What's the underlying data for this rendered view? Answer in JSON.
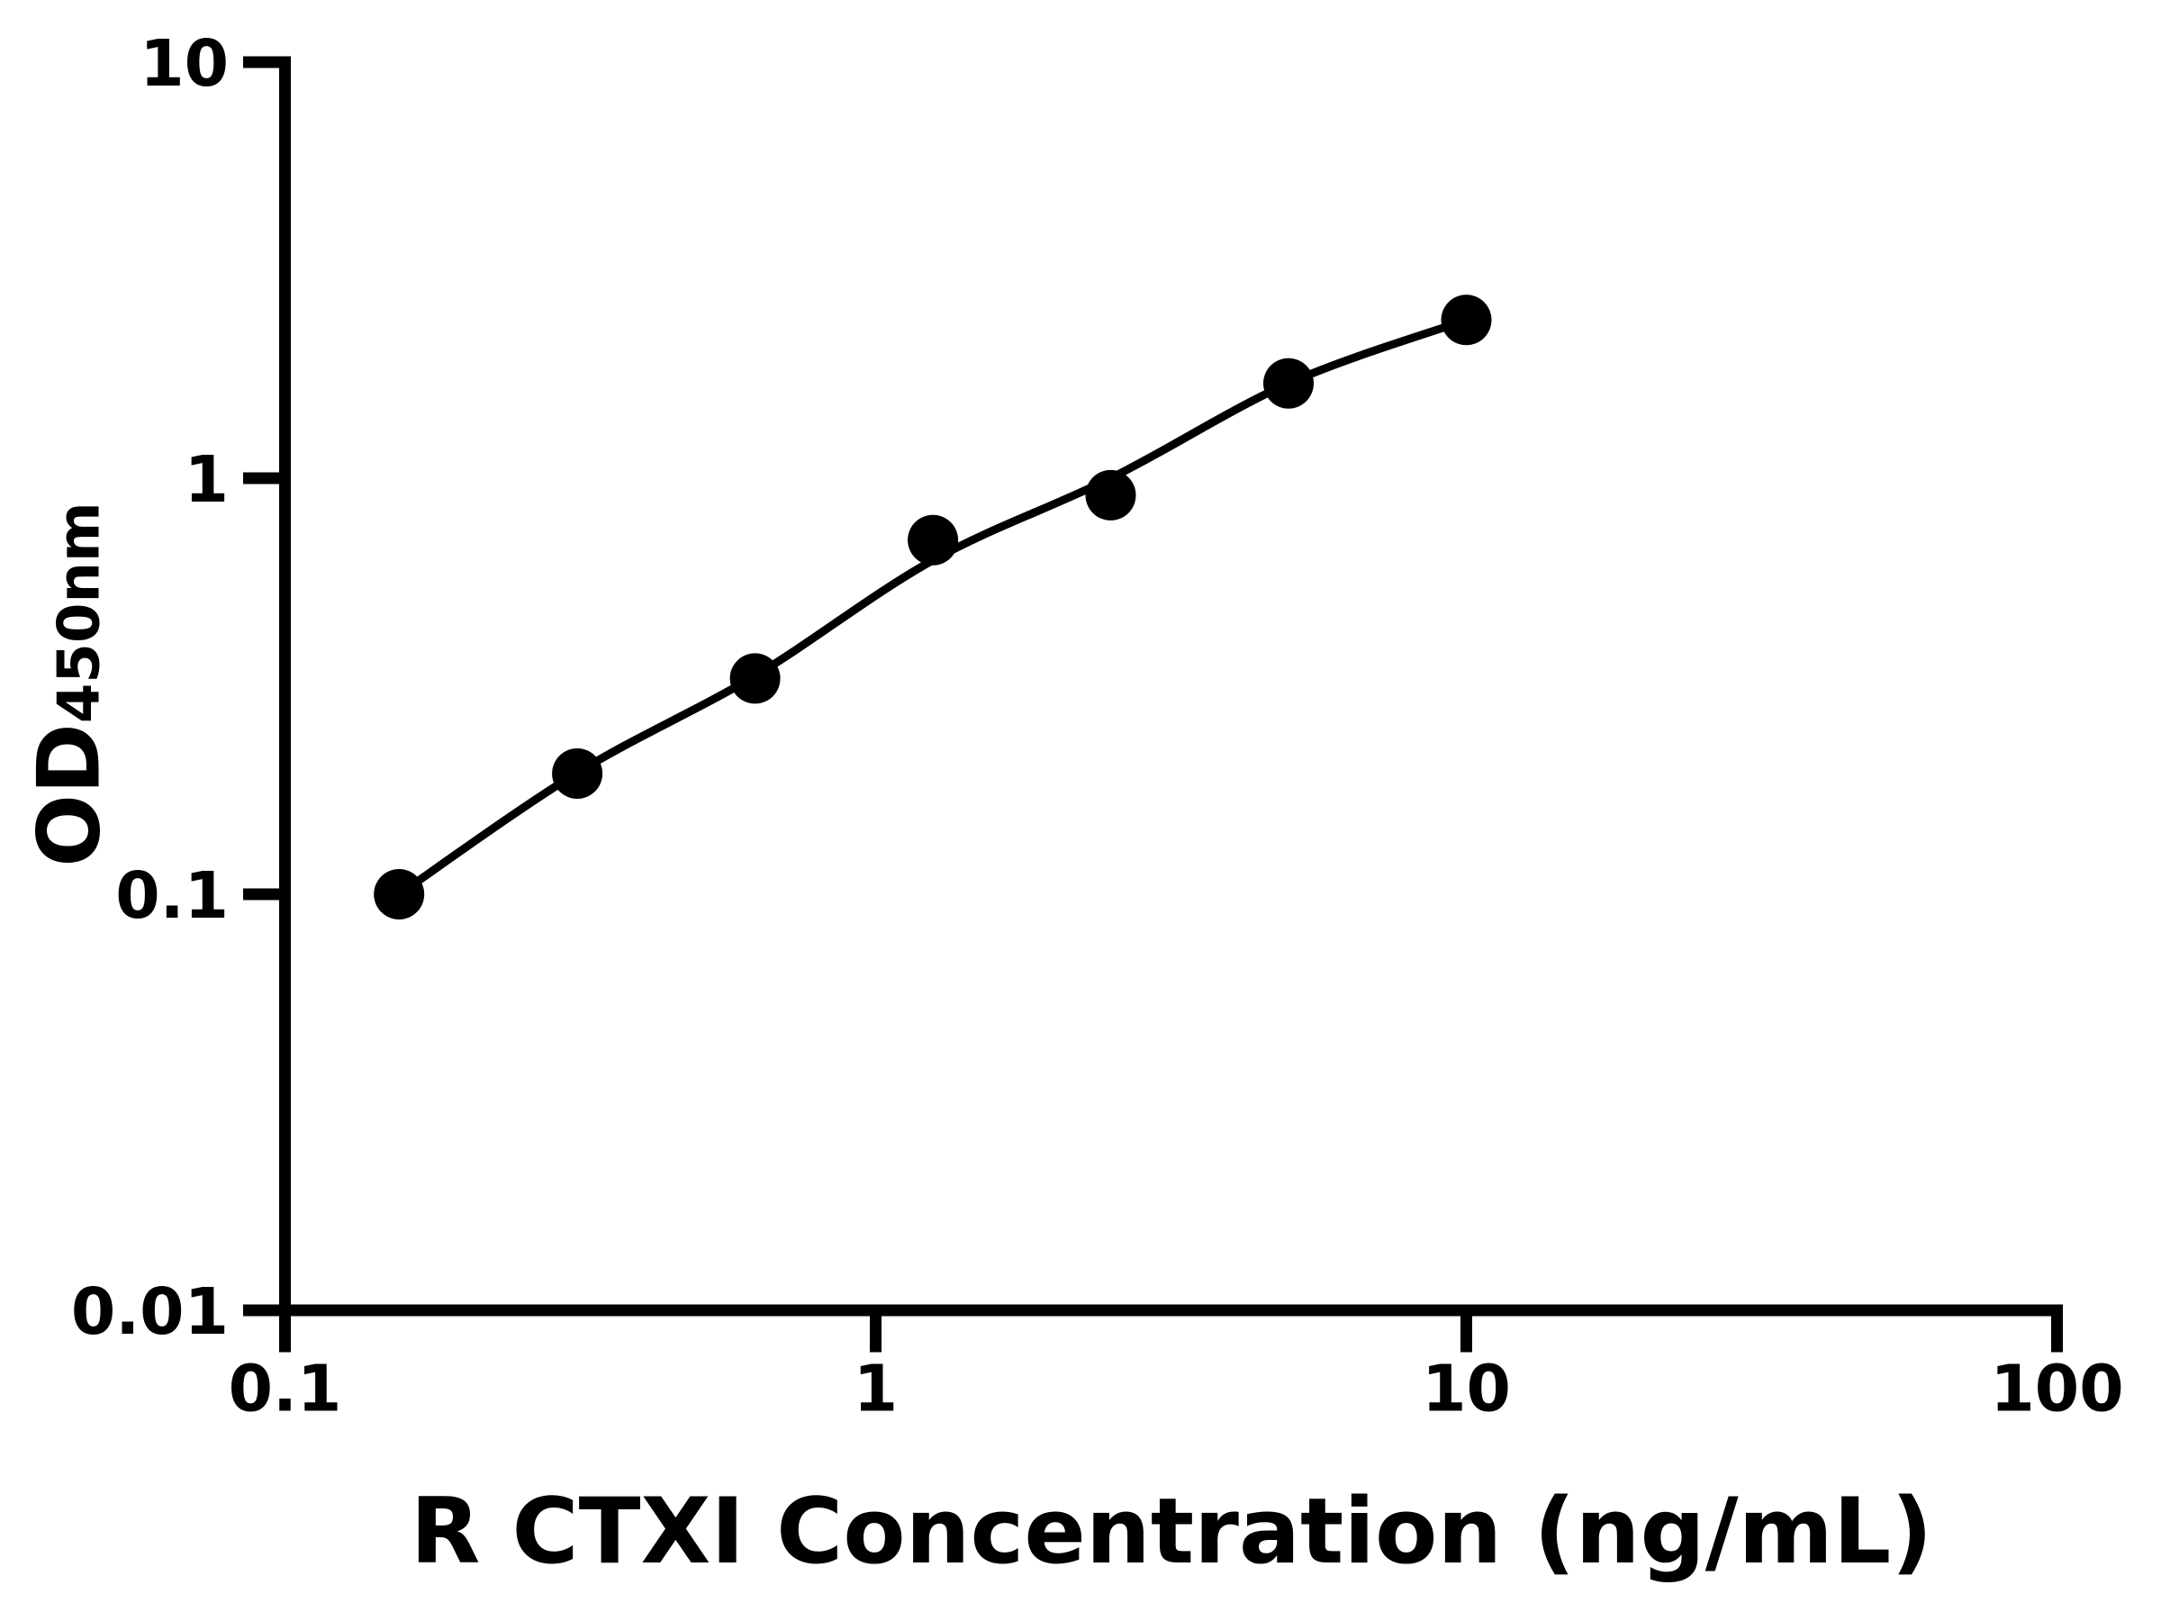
{
  "chart_data": {
    "type": "scatter",
    "title": "",
    "xlabel": "R CTXI Concentration (ng/mL)",
    "ylabel": "OD450nm",
    "ylabel_main": "OD",
    "ylabel_sub": "450nm",
    "x_scale": "log",
    "y_scale": "log",
    "xlim": [
      0.1,
      100
    ],
    "ylim": [
      0.01,
      10
    ],
    "grid": false,
    "legend": "none",
    "colors": {
      "foreground": "#000000",
      "background": "#ffffff"
    },
    "x_ticks": [
      {
        "value": 0.1,
        "label": "0.1"
      },
      {
        "value": 1,
        "label": "1"
      },
      {
        "value": 10,
        "label": "10"
      },
      {
        "value": 100,
        "label": "100"
      }
    ],
    "y_ticks": [
      {
        "value": 0.01,
        "label": "0.01"
      },
      {
        "value": 0.1,
        "label": "0.1"
      },
      {
        "value": 1,
        "label": "1"
      },
      {
        "value": 10,
        "label": "10"
      }
    ],
    "series": [
      {
        "name": "standard-points",
        "type": "scatter",
        "marker": "circle",
        "color": "#000000",
        "points": [
          {
            "x": 0.156,
            "y": 0.1
          },
          {
            "x": 0.3125,
            "y": 0.195
          },
          {
            "x": 0.625,
            "y": 0.33
          },
          {
            "x": 1.25,
            "y": 0.71
          },
          {
            "x": 2.5,
            "y": 0.91
          },
          {
            "x": 5,
            "y": 1.69
          },
          {
            "x": 10,
            "y": 2.4
          }
        ]
      },
      {
        "name": "fitted-curve",
        "type": "line",
        "color": "#000000",
        "points": [
          {
            "x": 0.156,
            "y": 0.1
          },
          {
            "x": 0.3125,
            "y": 0.196
          },
          {
            "x": 0.625,
            "y": 0.335
          },
          {
            "x": 1.25,
            "y": 0.635
          },
          {
            "x": 2.5,
            "y": 1.0
          },
          {
            "x": 5,
            "y": 1.69
          },
          {
            "x": 10,
            "y": 2.4
          }
        ]
      }
    ]
  }
}
